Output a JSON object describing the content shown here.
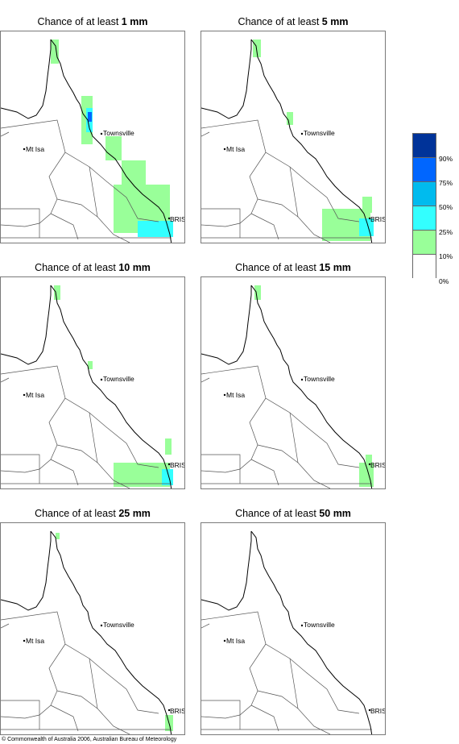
{
  "panels": [
    {
      "title_prefix": "Chance of at least ",
      "title_value": "1 mm"
    },
    {
      "title_prefix": "Chance of at least ",
      "title_value": "5 mm"
    },
    {
      "title_prefix": "Chance of at least ",
      "title_value": "10 mm"
    },
    {
      "title_prefix": "Chance of at least ",
      "title_value": "15 mm"
    },
    {
      "title_prefix": "Chance of at least ",
      "title_value": "25 mm"
    },
    {
      "title_prefix": "Chance of at least ",
      "title_value": "50 mm"
    }
  ],
  "places": {
    "townsville": "Townsville",
    "mt_isa": "Mt Isa",
    "bris": "BRIS"
  },
  "legend": {
    "ticks": [
      "90%",
      "75%",
      "50%",
      "25%",
      "10%",
      "0%"
    ],
    "colors": [
      "#003399",
      "#0066ff",
      "#00bbee",
      "#33ffff",
      "#99ff99",
      "#ffffff"
    ]
  },
  "footer": "© Commonwealth of Australia 2006, Australian Bureau of Meteorology"
}
